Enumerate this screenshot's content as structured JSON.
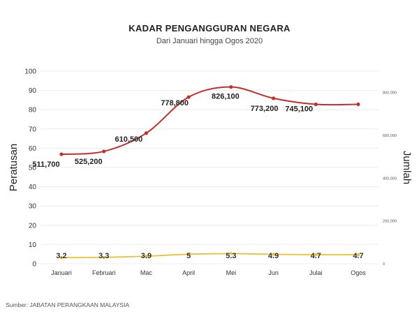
{
  "chart_data": {
    "type": "line",
    "title": "KADAR PENGANGGURAN NEGARA",
    "subtitle": "Dari Januari hingga Ogos 2020",
    "categories": [
      "Januari",
      "Februari",
      "Mac",
      "April",
      "Mei",
      "Jun",
      "Julai",
      "Ogos"
    ],
    "left_axis": {
      "label": "Peratusan",
      "range": [
        0,
        100
      ],
      "ticks": [
        "0",
        "10",
        "20",
        "30",
        "40",
        "50",
        "60",
        "70",
        "80",
        "90",
        "100"
      ]
    },
    "right_axis": {
      "label": "Jumlah",
      "range": [
        0,
        900000
      ],
      "tick_values": [
        0,
        200000,
        400000,
        600000,
        800000
      ],
      "ticks": [
        "0",
        "200,000",
        "400,000",
        "600,000",
        "800,000"
      ]
    },
    "series": [
      {
        "name": "Jumlah",
        "axis": "right",
        "color": "#c0302e",
        "values": [
          511700,
          525200,
          610500,
          778800,
          826100,
          773200,
          745100,
          745100
        ],
        "labels": [
          "511,700",
          "525,200",
          "610,500",
          "778,800",
          "826,100",
          "773,200",
          "745,100",
          ""
        ]
      },
      {
        "name": "Peratusan",
        "axis": "left",
        "color": "#e8c232",
        "values": [
          3.2,
          3.3,
          3.9,
          5,
          5.3,
          4.9,
          4.7,
          4.7
        ],
        "labels": [
          "3.2",
          "3.3",
          "3.9",
          "5",
          "5.3",
          "4.9",
          "4.7",
          "4.7"
        ]
      }
    ],
    "source": "Sumber: JABATAN PERANGKAAN MALAYSIA"
  }
}
